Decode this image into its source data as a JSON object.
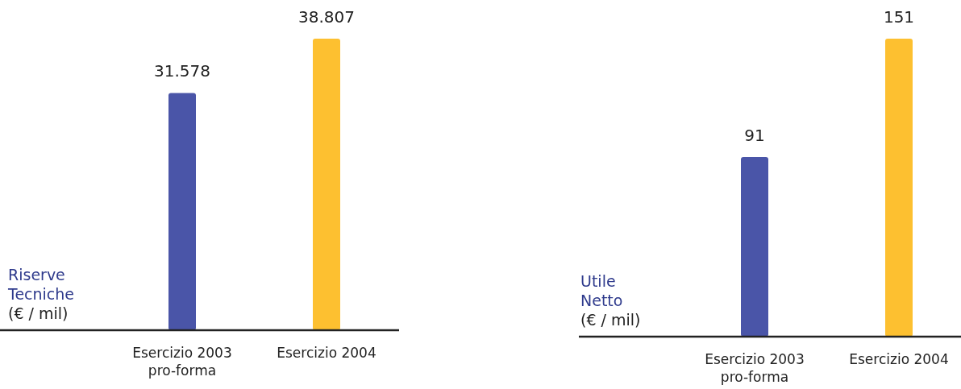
{
  "chart_data": [
    {
      "type": "bar",
      "title": "Riserve Tecniche",
      "subtitle": "(€ / mil)",
      "categories": [
        "Esercizio 2003\npro-forma",
        "Esercizio 2004"
      ],
      "values": [
        31578,
        38807
      ],
      "colors": [
        "#4a55a8",
        "#fdc030"
      ],
      "value_labels": [
        "31.578",
        "38.807"
      ]
    },
    {
      "type": "bar",
      "title": "Utile Netto",
      "subtitle": "(€ / mil)",
      "categories": [
        "Esercizio 2003\npro-forma",
        "Esercizio 2004"
      ],
      "values": [
        91,
        151
      ],
      "colors": [
        "#4a55a8",
        "#fdc030"
      ],
      "value_labels": [
        "91",
        "151"
      ]
    }
  ]
}
